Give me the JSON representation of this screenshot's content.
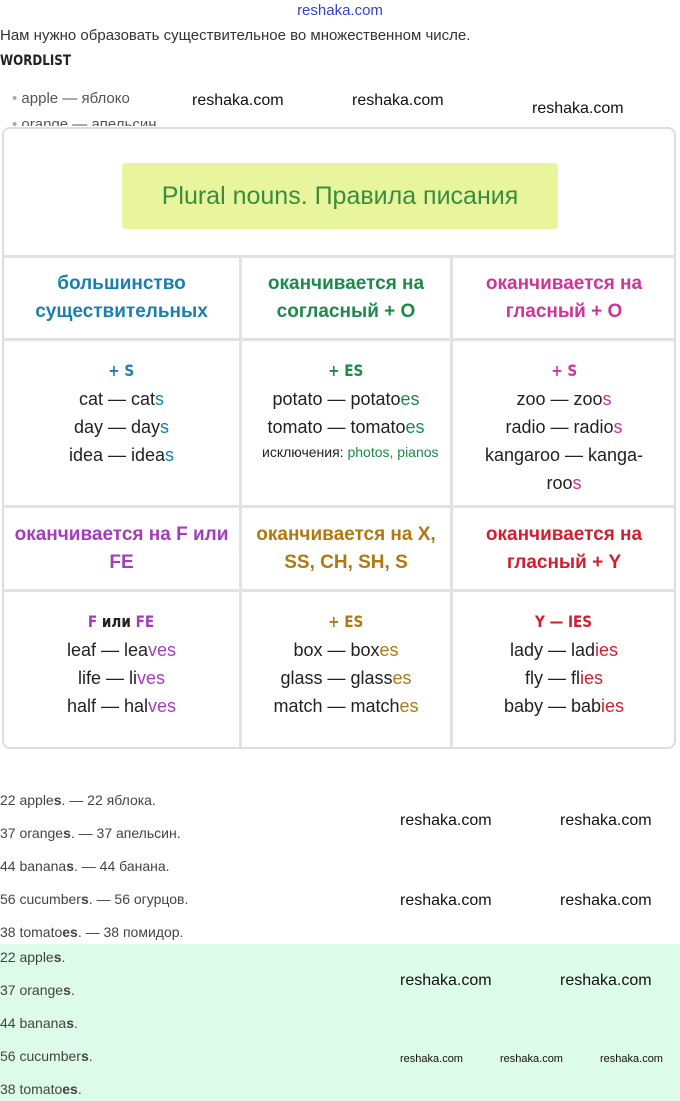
{
  "header_watermark": "reshaka.com",
  "intro": "Нам нужно образовать существительное во множественном числе.",
  "wordlist_title": "WORDLIST",
  "wordlist": [
    "apple — яблоко",
    "orange — апельсин"
  ],
  "table": {
    "title": "Plural nouns. Правила писания",
    "colors": {
      "blue": "#1a7fb0",
      "green": "#1e8a4a",
      "magenta": "#d0339a",
      "purple": "#a43cc0",
      "brown": "#b07810",
      "red": "#d02030",
      "title_bg": "#e8f59c"
    },
    "row1": {
      "headers": [
        "большинство существительных",
        "оканчивается на согласный + O",
        "оканчивается на гласный + O"
      ],
      "rules": [
        "+ S",
        "+ ES",
        "+ S"
      ],
      "col1": [
        [
          "cat — cat",
          "s"
        ],
        [
          "day — day",
          "s"
        ],
        [
          "idea — idea",
          "s"
        ]
      ],
      "col2": [
        [
          "potato — potato",
          "es"
        ],
        [
          "tomato — tomato",
          "es"
        ]
      ],
      "col2_note_label": "исключения:",
      "col2_note_value": "photos, pianos",
      "col3": [
        [
          "zoo — zoo",
          "s"
        ],
        [
          "radio — radio",
          "s"
        ],
        [
          "kangaroo — kanga-roo",
          "s"
        ]
      ]
    },
    "row2": {
      "headers": [
        "оканчивается на F или FE",
        "оканчивается на X, SS, CH, SH, S",
        "оканчивается на гласный + Y"
      ],
      "rule1_a": "F",
      "rule1_mid": " или ",
      "rule1_b": "FE",
      "rules": [
        "+ ES",
        "Y — IES"
      ],
      "col1": [
        [
          "leaf — lea",
          "ves"
        ],
        [
          "life — li",
          "ves"
        ],
        [
          "half — hal",
          "ves"
        ]
      ],
      "col2": [
        [
          "box — box",
          "es"
        ],
        [
          "glass — glass",
          "es"
        ],
        [
          "match — match",
          "es"
        ]
      ],
      "col3": [
        [
          "lady — lad",
          "ies"
        ],
        [
          "fly — fl",
          "ies"
        ],
        [
          "baby — bab",
          "ies"
        ]
      ]
    }
  },
  "answers": [
    [
      "22 apple",
      "s",
      ". — 22 яблока."
    ],
    [
      "37 orange",
      "s",
      ". — 37 апельсин."
    ],
    [
      "44 banana",
      "s",
      ". — 44 банана."
    ],
    [
      "56 cucumber",
      "s",
      ". — 56 огурцов."
    ],
    [
      "38 tomato",
      "es",
      ". — 38 помидор."
    ]
  ],
  "final_answers": [
    [
      "22 apple",
      "s",
      "."
    ],
    [
      "37 orange",
      "s",
      "."
    ],
    [
      "44 banana",
      "s",
      "."
    ],
    [
      "56 cucumber",
      "s",
      "."
    ],
    [
      "38 tomato",
      "es",
      "."
    ]
  ],
  "watermark": "reshaka.com"
}
